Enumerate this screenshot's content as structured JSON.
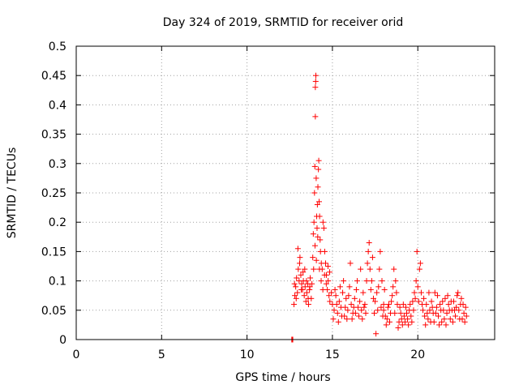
{
  "chart_data": {
    "type": "scatter",
    "title": "Day 324 of 2019, SRMTID for receiver orid",
    "xlabel": "GPS time / hours",
    "ylabel": "SRMTID / TECUs",
    "xlim": [
      0,
      24.5
    ],
    "ylim": [
      0,
      0.5
    ],
    "x_ticks": [
      0,
      5,
      10,
      15,
      20
    ],
    "x_tick_labels": [
      "0",
      "5",
      "10",
      "15",
      "20"
    ],
    "y_ticks": [
      0,
      0.05,
      0.1,
      0.15,
      0.2,
      0.25,
      0.3,
      0.35,
      0.4,
      0.45,
      0.5
    ],
    "y_tick_labels": [
      "0",
      "0.05",
      "0.1",
      "0.15",
      "0.2",
      "0.25",
      "0.3",
      "0.35",
      "0.4",
      "0.45",
      "0.5"
    ],
    "grid": true,
    "grid_style": "dotted",
    "marker": "plus",
    "series": [
      {
        "name": "SRMTID",
        "color": "#ff0000",
        "points": [
          [
            12.62,
            0.0
          ],
          [
            12.64,
            0.0
          ],
          [
            12.66,
            0.0
          ],
          [
            12.68,
            0.0
          ],
          [
            12.75,
            0.06
          ],
          [
            12.8,
            0.075
          ],
          [
            12.85,
            0.09
          ],
          [
            12.9,
            0.105
          ],
          [
            12.95,
            0.08
          ],
          [
            13.0,
            0.12
          ],
          [
            13.05,
            0.1
          ],
          [
            13.1,
            0.14
          ],
          [
            13.15,
            0.11
          ],
          [
            13.2,
            0.095
          ],
          [
            13.25,
            0.085
          ],
          [
            13.3,
            0.1
          ],
          [
            13.35,
            0.075
          ],
          [
            13.4,
            0.09
          ],
          [
            13.45,
            0.065
          ],
          [
            13.5,
            0.08
          ],
          [
            12.78,
            0.095
          ],
          [
            12.88,
            0.07
          ],
          [
            12.98,
            0.155
          ],
          [
            13.08,
            0.13
          ],
          [
            13.18,
            0.085
          ],
          [
            13.28,
            0.115
          ],
          [
            13.38,
            0.12
          ],
          [
            13.48,
            0.1
          ],
          [
            13.58,
            0.07
          ],
          [
            13.68,
            0.09
          ],
          [
            13.6,
            0.06
          ],
          [
            13.7,
            0.105
          ],
          [
            13.8,
            0.095
          ],
          [
            13.85,
            0.14
          ],
          [
            13.9,
            0.12
          ],
          [
            13.92,
            0.2
          ],
          [
            13.95,
            0.25
          ],
          [
            13.97,
            0.295
          ],
          [
            14.0,
            0.38
          ],
          [
            14.0,
            0.43
          ],
          [
            14.02,
            0.44
          ],
          [
            14.03,
            0.45
          ],
          [
            14.05,
            0.275
          ],
          [
            14.08,
            0.21
          ],
          [
            14.1,
            0.19
          ],
          [
            14.12,
            0.23
          ],
          [
            14.15,
            0.26
          ],
          [
            14.18,
            0.29
          ],
          [
            14.2,
            0.305
          ],
          [
            14.22,
            0.235
          ],
          [
            14.25,
            0.21
          ],
          [
            14.28,
            0.17
          ],
          [
            14.3,
            0.15
          ],
          [
            14.35,
            0.13
          ],
          [
            14.4,
            0.12
          ],
          [
            14.45,
            0.2
          ],
          [
            14.5,
            0.19
          ],
          [
            14.55,
            0.15
          ],
          [
            14.6,
            0.13
          ],
          [
            14.65,
            0.11
          ],
          [
            14.7,
            0.085
          ],
          [
            14.75,
            0.1
          ],
          [
            14.8,
            0.075
          ],
          [
            14.85,
            0.065
          ],
          [
            13.88,
            0.18
          ],
          [
            13.98,
            0.16
          ],
          [
            14.06,
            0.135
          ],
          [
            14.14,
            0.175
          ],
          [
            14.24,
            0.12
          ],
          [
            14.34,
            0.1
          ],
          [
            14.44,
            0.085
          ],
          [
            14.54,
            0.11
          ],
          [
            14.64,
            0.095
          ],
          [
            14.74,
            0.125
          ],
          [
            14.84,
            0.115
          ],
          [
            14.94,
            0.08
          ],
          [
            13.76,
            0.07
          ],
          [
            13.66,
            0.085
          ],
          [
            13.56,
            0.095
          ],
          [
            15.0,
            0.06
          ],
          [
            15.1,
            0.05
          ],
          [
            15.2,
            0.075
          ],
          [
            15.3,
            0.045
          ],
          [
            15.4,
            0.065
          ],
          [
            15.5,
            0.055
          ],
          [
            15.6,
            0.08
          ],
          [
            15.7,
            0.04
          ],
          [
            15.8,
            0.07
          ],
          [
            15.9,
            0.05
          ],
          [
            16.0,
            0.09
          ],
          [
            16.1,
            0.06
          ],
          [
            16.2,
            0.045
          ],
          [
            16.3,
            0.07
          ],
          [
            16.4,
            0.085
          ],
          [
            16.5,
            0.055
          ],
          [
            16.6,
            0.065
          ],
          [
            16.7,
            0.05
          ],
          [
            16.8,
            0.08
          ],
          [
            16.9,
            0.06
          ],
          [
            17.0,
            0.1
          ],
          [
            17.1,
            0.15
          ],
          [
            17.15,
            0.165
          ],
          [
            17.2,
            0.12
          ],
          [
            17.3,
            0.1
          ],
          [
            17.4,
            0.07
          ],
          [
            17.5,
            0.065
          ],
          [
            17.6,
            0.08
          ],
          [
            17.7,
            0.09
          ],
          [
            17.8,
            0.15
          ],
          [
            17.9,
            0.1
          ],
          [
            18.0,
            0.06
          ],
          [
            15.05,
            0.035
          ],
          [
            15.15,
            0.085
          ],
          [
            15.25,
            0.06
          ],
          [
            15.35,
            0.03
          ],
          [
            15.45,
            0.09
          ],
          [
            15.55,
            0.04
          ],
          [
            15.65,
            0.1
          ],
          [
            15.75,
            0.055
          ],
          [
            15.85,
            0.035
          ],
          [
            15.95,
            0.075
          ],
          [
            16.05,
            0.13
          ],
          [
            16.15,
            0.035
          ],
          [
            16.25,
            0.055
          ],
          [
            16.35,
            0.045
          ],
          [
            16.45,
            0.1
          ],
          [
            16.55,
            0.04
          ],
          [
            16.65,
            0.12
          ],
          [
            16.75,
            0.035
          ],
          [
            16.85,
            0.055
          ],
          [
            16.95,
            0.045
          ],
          [
            17.05,
            0.13
          ],
          [
            17.25,
            0.085
          ],
          [
            17.35,
            0.14
          ],
          [
            17.45,
            0.045
          ],
          [
            17.55,
            0.01
          ],
          [
            17.65,
            0.05
          ],
          [
            17.75,
            0.12
          ],
          [
            17.85,
            0.055
          ],
          [
            17.95,
            0.04
          ],
          [
            18.0,
            0.05
          ],
          [
            18.1,
            0.04
          ],
          [
            18.2,
            0.035
          ],
          [
            18.3,
            0.06
          ],
          [
            18.4,
            0.045
          ],
          [
            18.5,
            0.075
          ],
          [
            18.6,
            0.12
          ],
          [
            18.7,
            0.1
          ],
          [
            18.8,
            0.06
          ],
          [
            18.9,
            0.03
          ],
          [
            19.0,
            0.045
          ],
          [
            19.1,
            0.025
          ],
          [
            19.2,
            0.04
          ],
          [
            19.3,
            0.055
          ],
          [
            19.4,
            0.035
          ],
          [
            19.5,
            0.05
          ],
          [
            19.6,
            0.04
          ],
          [
            19.7,
            0.065
          ],
          [
            19.8,
            0.08
          ],
          [
            19.9,
            0.1
          ],
          [
            19.95,
            0.15
          ],
          [
            20.0,
            0.09
          ],
          [
            20.1,
            0.12
          ],
          [
            20.2,
            0.08
          ],
          [
            18.05,
            0.085
          ],
          [
            18.15,
            0.025
          ],
          [
            18.25,
            0.055
          ],
          [
            18.35,
            0.03
          ],
          [
            18.45,
            0.065
          ],
          [
            18.55,
            0.09
          ],
          [
            18.65,
            0.045
          ],
          [
            18.75,
            0.08
          ],
          [
            18.85,
            0.02
          ],
          [
            18.95,
            0.055
          ],
          [
            19.05,
            0.035
          ],
          [
            19.15,
            0.06
          ],
          [
            19.25,
            0.03
          ],
          [
            19.35,
            0.045
          ],
          [
            19.45,
            0.025
          ],
          [
            19.55,
            0.06
          ],
          [
            19.65,
            0.03
          ],
          [
            19.75,
            0.05
          ],
          [
            19.85,
            0.07
          ],
          [
            20.05,
            0.065
          ],
          [
            20.15,
            0.13
          ],
          [
            20.25,
            0.06
          ],
          [
            20.3,
            0.05
          ],
          [
            20.4,
            0.04
          ],
          [
            20.5,
            0.06
          ],
          [
            20.6,
            0.035
          ],
          [
            20.7,
            0.05
          ],
          [
            20.8,
            0.065
          ],
          [
            20.9,
            0.045
          ],
          [
            21.0,
            0.08
          ],
          [
            21.1,
            0.055
          ],
          [
            21.2,
            0.04
          ],
          [
            21.3,
            0.06
          ],
          [
            21.4,
            0.03
          ],
          [
            21.5,
            0.05
          ],
          [
            21.6,
            0.07
          ],
          [
            21.7,
            0.045
          ],
          [
            21.8,
            0.06
          ],
          [
            21.9,
            0.035
          ],
          [
            22.0,
            0.05
          ],
          [
            22.1,
            0.065
          ],
          [
            22.2,
            0.04
          ],
          [
            22.3,
            0.075
          ],
          [
            22.4,
            0.05
          ],
          [
            22.5,
            0.06
          ],
          [
            22.6,
            0.035
          ],
          [
            22.7,
            0.045
          ],
          [
            22.8,
            0.055
          ],
          [
            20.35,
            0.07
          ],
          [
            20.45,
            0.025
          ],
          [
            20.55,
            0.045
          ],
          [
            20.65,
            0.08
          ],
          [
            20.75,
            0.03
          ],
          [
            20.85,
            0.055
          ],
          [
            20.95,
            0.03
          ],
          [
            21.05,
            0.045
          ],
          [
            21.15,
            0.075
          ],
          [
            21.25,
            0.025
          ],
          [
            21.35,
            0.05
          ],
          [
            21.45,
            0.065
          ],
          [
            21.55,
            0.035
          ],
          [
            21.65,
            0.025
          ],
          [
            21.75,
            0.075
          ],
          [
            21.85,
            0.05
          ],
          [
            21.95,
            0.065
          ],
          [
            22.05,
            0.03
          ],
          [
            22.15,
            0.05
          ],
          [
            22.25,
            0.055
          ],
          [
            22.35,
            0.08
          ],
          [
            22.45,
            0.035
          ],
          [
            22.55,
            0.07
          ],
          [
            22.65,
            0.06
          ],
          [
            22.75,
            0.03
          ],
          [
            22.85,
            0.04
          ]
        ]
      }
    ]
  }
}
